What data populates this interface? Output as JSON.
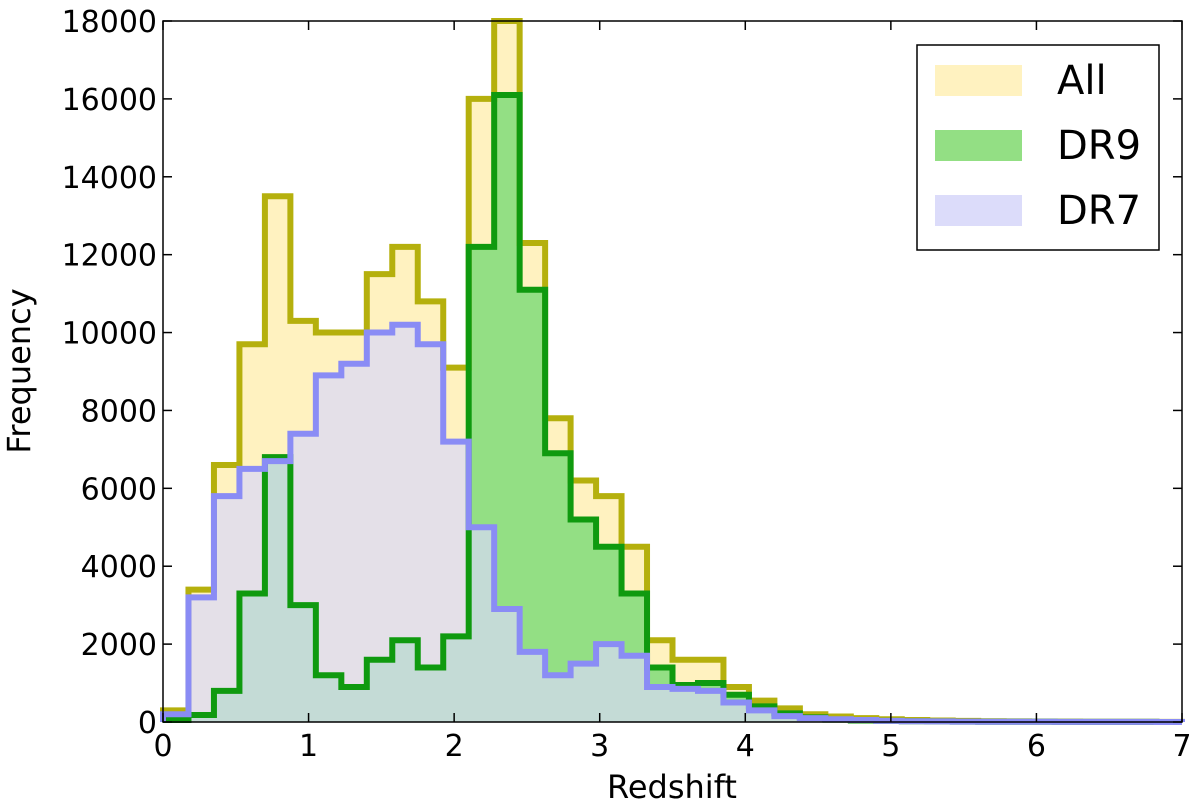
{
  "chart_data": {
    "type": "histogram",
    "xlabel": "Redshift",
    "ylabel": "Frequency",
    "xlim": [
      0,
      7
    ],
    "ylim": [
      0,
      18000
    ],
    "xticks": [
      "0",
      "1",
      "2",
      "3",
      "4",
      "5",
      "6",
      "7"
    ],
    "yticks": [
      "0",
      "2000",
      "4000",
      "6000",
      "8000",
      "10000",
      "12000",
      "14000",
      "16000",
      "18000"
    ],
    "grid": false,
    "legend_position": "top-right",
    "bin_edges": [
      0,
      0.175,
      0.35,
      0.525,
      0.7,
      0.875,
      1.05,
      1.225,
      1.4,
      1.575,
      1.75,
      1.925,
      2.1,
      2.275,
      2.45,
      2.625,
      2.8,
      2.975,
      3.15,
      3.325,
      3.5,
      3.675,
      3.85,
      4.025,
      4.2,
      4.375,
      4.55,
      4.725,
      4.9,
      5.075,
      5.25,
      5.425,
      5.6,
      5.775,
      5.95,
      6.125,
      6.3,
      6.475,
      6.65,
      6.825,
      7.0
    ],
    "series": [
      {
        "name": "All",
        "fill": "#fff2c0",
        "edge": "#b5b00d",
        "values": [
          300,
          3400,
          6600,
          9700,
          13500,
          10300,
          10000,
          10000,
          11500,
          12200,
          10800,
          9100,
          16000,
          18000,
          12300,
          7800,
          6200,
          5800,
          4500,
          2100,
          1600,
          1600,
          900,
          550,
          350,
          200,
          140,
          100,
          70,
          50,
          40,
          30,
          20,
          15,
          12,
          10,
          8,
          6,
          5,
          4
        ]
      },
      {
        "name": "DR9",
        "fill": "#93df84",
        "edge": "#0f9a0f",
        "values": [
          50,
          180,
          800,
          3300,
          6800,
          3000,
          1200,
          900,
          1600,
          2100,
          1400,
          2200,
          12200,
          16100,
          11100,
          6900,
          5200,
          4500,
          3300,
          1400,
          950,
          1000,
          700,
          400,
          220,
          120,
          60,
          40,
          30,
          20,
          15,
          10,
          8,
          6,
          5,
          4,
          3,
          2,
          2,
          1
        ]
      },
      {
        "name": "DR7",
        "fill": "#d8d8fa",
        "edge": "#8a8cf5",
        "values": [
          200,
          3200,
          5800,
          6500,
          6700,
          7400,
          8900,
          9200,
          10000,
          10200,
          9700,
          7200,
          5000,
          2900,
          1800,
          1200,
          1500,
          2000,
          1700,
          900,
          850,
          800,
          500,
          300,
          150,
          100,
          70,
          50,
          30,
          20,
          15,
          10,
          8,
          6,
          5,
          4,
          3,
          2,
          2,
          1
        ]
      }
    ]
  }
}
